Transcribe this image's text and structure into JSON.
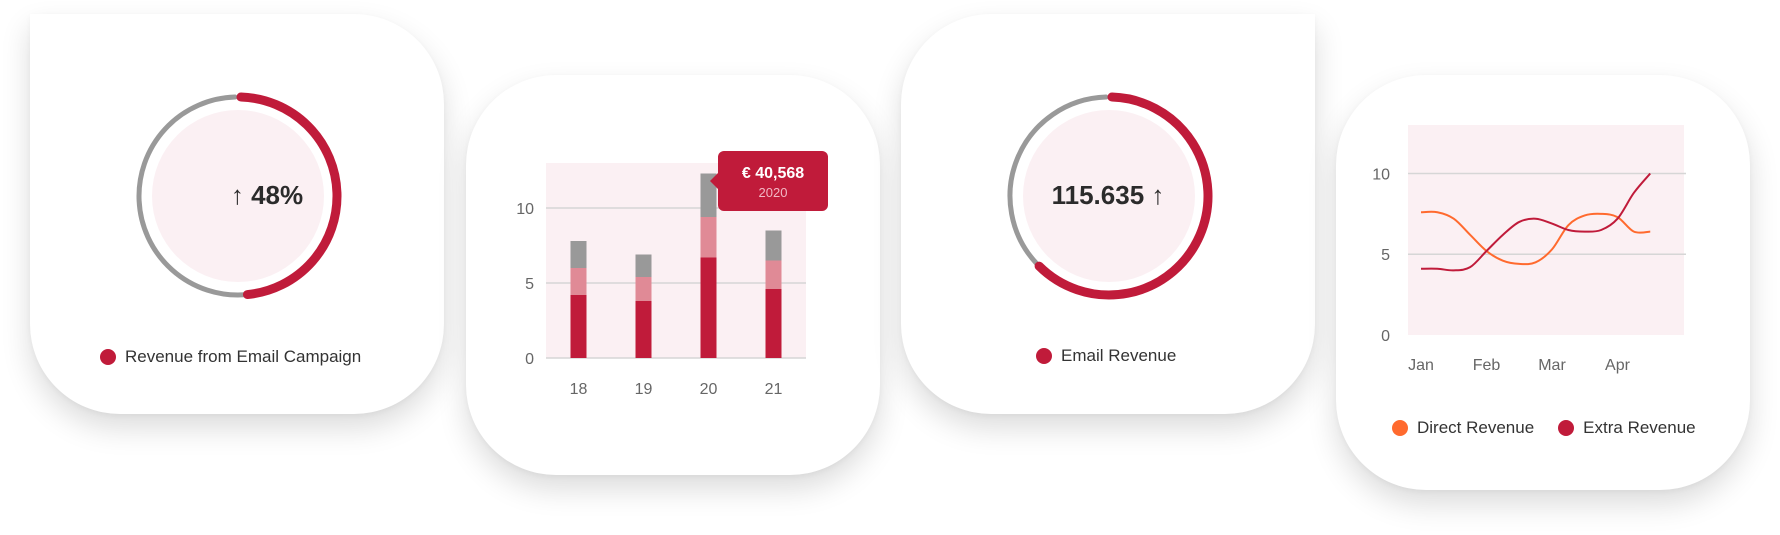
{
  "colors": {
    "accent": "#c01b3a",
    "gray": "#999999",
    "pink": "#e08a96",
    "orange": "#ff6a2e",
    "plot_bg": "#fbf0f3"
  },
  "card1": {
    "value_text": "↑ 48%",
    "legend": "Revenue from Email Campaign"
  },
  "card2": {
    "tooltip": {
      "value": "€ 40,568",
      "sub": "2020"
    }
  },
  "card3": {
    "value_text": "115.635 ↑",
    "legend": "Email Revenue"
  },
  "card4": {
    "legend": [
      "Direct Revenue",
      "Extra Revenue"
    ]
  },
  "chart_data": [
    {
      "type": "pie",
      "subtype": "progress-ring",
      "value": 48,
      "unit": "%",
      "center_label": "↑ 48%",
      "legend": [
        "Revenue from Email Campaign"
      ]
    },
    {
      "type": "bar",
      "stacked": true,
      "categories": [
        "18",
        "19",
        "20",
        "21"
      ],
      "series": [
        {
          "values": [
            4.2,
            3.8,
            6.7,
            4.6
          ],
          "color": "#c01b3a"
        },
        {
          "values": [
            1.8,
            1.6,
            2.7,
            1.9
          ],
          "color": "#e08a96"
        },
        {
          "values": [
            1.8,
            1.5,
            2.9,
            2.0
          ],
          "color": "#999999"
        }
      ],
      "ylim": [
        0,
        13
      ],
      "yticks": [
        0,
        5,
        10
      ],
      "annotation": {
        "category": "20",
        "value": "€ 40,568",
        "sub": "2020"
      }
    },
    {
      "type": "pie",
      "subtype": "progress-ring",
      "value": 62,
      "unit": "%",
      "center_label": "115.635 ↑",
      "legend": [
        "Email Revenue"
      ]
    },
    {
      "type": "line",
      "categories": [
        "Jan",
        "Feb",
        "Mar",
        "Apr"
      ],
      "x": [
        0.0,
        0.25,
        0.5,
        0.75,
        1.0,
        1.25,
        1.5,
        1.75,
        2.0,
        2.25,
        2.5,
        2.75,
        3.0,
        3.25,
        3.5
      ],
      "series": [
        {
          "name": "Direct Revenue",
          "color": "#ff6a2e",
          "values": [
            7.6,
            7.6,
            7.2,
            6.2,
            5.2,
            4.6,
            4.4,
            4.5,
            5.3,
            6.8,
            7.4,
            7.5,
            7.3,
            6.4,
            6.4
          ]
        },
        {
          "name": "Extra Revenue",
          "color": "#c01b3a",
          "values": [
            4.1,
            4.1,
            4.0,
            4.2,
            5.2,
            6.2,
            7.0,
            7.2,
            6.9,
            6.5,
            6.4,
            6.5,
            7.2,
            8.8,
            10.0
          ]
        }
      ],
      "ylim": [
        0,
        13
      ],
      "yticks": [
        0,
        5,
        10
      ],
      "grid": true,
      "legend_position": "bottom"
    }
  ]
}
